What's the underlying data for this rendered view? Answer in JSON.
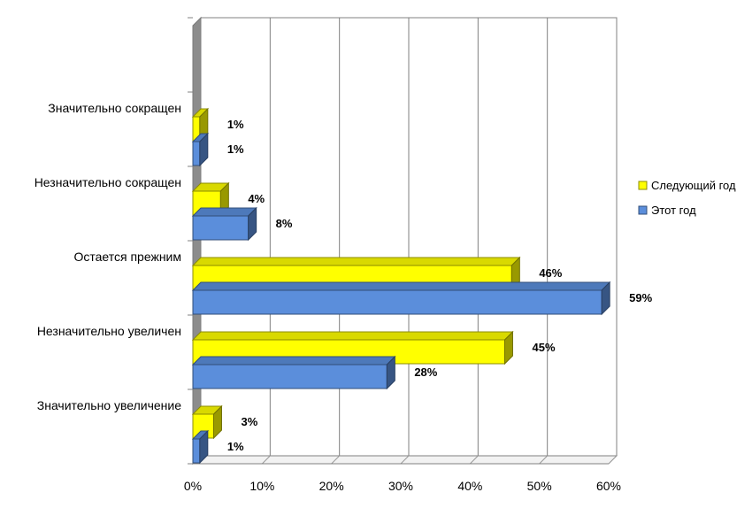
{
  "chart_data": {
    "type": "bar",
    "orientation": "horizontal",
    "three_d": true,
    "categories": [
      "Значительно сокращен",
      "Незначительно сокращен",
      "Остается прежним",
      "Незначительно увеличен",
      "Значительно увеличение"
    ],
    "series": [
      {
        "name": "Следующий год",
        "color": "#FFFF00",
        "values": [
          1,
          4,
          46,
          45,
          3
        ],
        "labels": [
          "1%",
          "4%",
          "46%",
          "45%",
          "3%"
        ]
      },
      {
        "name": "Этот год",
        "color": "#5B8EDB",
        "values": [
          1,
          8,
          59,
          28,
          1
        ],
        "labels": [
          "1%",
          "8%",
          "59%",
          "28%",
          "1%"
        ]
      }
    ],
    "x_ticks": [
      "0%",
      "10%",
      "20%",
      "30%",
      "40%",
      "50%",
      "60%"
    ],
    "xlim": [
      0,
      60
    ],
    "grid": true,
    "legend": "right",
    "title": "",
    "xlabel": "",
    "ylabel": ""
  }
}
